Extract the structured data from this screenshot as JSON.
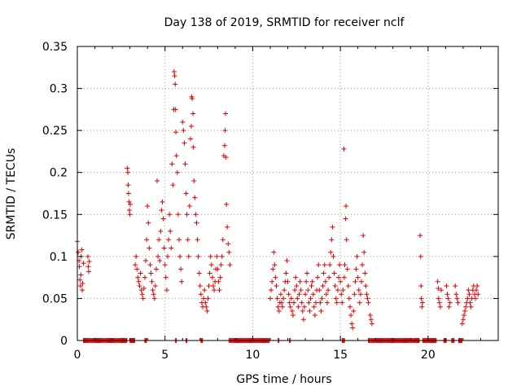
{
  "chart_data": {
    "type": "scatter",
    "title": "Day 138 of 2019, SRMTID for receiver nclf",
    "xlabel": "GPS time / hours",
    "ylabel": "SRMTID / TECUs",
    "xlim": [
      0,
      24
    ],
    "ylim": [
      0,
      0.35
    ],
    "x_ticks": [
      0,
      5,
      10,
      15,
      20
    ],
    "x_tick_labels": [
      "0",
      "5",
      "10",
      "15",
      "20"
    ],
    "y_ticks": [
      0,
      0.05,
      0.1,
      0.15,
      0.2,
      0.25,
      0.3,
      0.35
    ],
    "y_tick_labels": [
      "0",
      "0.05",
      "0.1",
      "0.15",
      "0.2",
      "0.25",
      "0.3",
      "0.35"
    ],
    "grid": true,
    "marker": "+",
    "color": "#e00000",
    "series": [
      {
        "name": "SRMTID",
        "points": [
          [
            0.0,
            0.118
          ],
          [
            0.05,
            0.105
          ],
          [
            0.1,
            0.095
          ],
          [
            0.12,
            0.088
          ],
          [
            0.15,
            0.072
          ],
          [
            0.18,
            0.065
          ],
          [
            0.2,
            0.078
          ],
          [
            0.22,
            0.1
          ],
          [
            0.25,
            0.108
          ],
          [
            0.28,
            0.06
          ],
          [
            0.3,
            0.068
          ],
          [
            0.35,
            0.092
          ],
          [
            0.6,
            0.1
          ],
          [
            0.62,
            0.088
          ],
          [
            0.65,
            0.082
          ],
          [
            0.68,
            0.094
          ],
          [
            2.85,
            0.205
          ],
          [
            2.88,
            0.2
          ],
          [
            2.9,
            0.185
          ],
          [
            2.92,
            0.175
          ],
          [
            2.95,
            0.165
          ],
          [
            2.97,
            0.155
          ],
          [
            3.0,
            0.15
          ],
          [
            3.02,
            0.162
          ],
          [
            3.3,
            0.09
          ],
          [
            3.35,
            0.1
          ],
          [
            3.4,
            0.085
          ],
          [
            3.45,
            0.075
          ],
          [
            3.5,
            0.07
          ],
          [
            3.55,
            0.065
          ],
          [
            3.6,
            0.08
          ],
          [
            3.65,
            0.06
          ],
          [
            3.7,
            0.055
          ],
          [
            3.75,
            0.05
          ],
          [
            3.8,
            0.062
          ],
          [
            3.85,
            0.075
          ],
          [
            3.9,
            0.095
          ],
          [
            3.95,
            0.12
          ],
          [
            4.0,
            0.16
          ],
          [
            4.05,
            0.14
          ],
          [
            4.1,
            0.11
          ],
          [
            4.15,
            0.09
          ],
          [
            4.2,
            0.08
          ],
          [
            4.25,
            0.07
          ],
          [
            4.3,
            0.06
          ],
          [
            4.35,
            0.055
          ],
          [
            4.4,
            0.05
          ],
          [
            4.45,
            0.065
          ],
          [
            4.5,
            0.085
          ],
          [
            4.55,
            0.19
          ],
          [
            4.6,
            0.1
          ],
          [
            4.65,
            0.12
          ],
          [
            4.7,
            0.095
          ],
          [
            4.75,
            0.13
          ],
          [
            4.8,
            0.155
          ],
          [
            4.85,
            0.165
          ],
          [
            4.9,
            0.145
          ],
          [
            4.95,
            0.11
          ],
          [
            5.0,
            0.09
          ],
          [
            5.05,
            0.075
          ],
          [
            5.1,
            0.06
          ],
          [
            5.15,
            0.1
          ],
          [
            5.2,
            0.12
          ],
          [
            5.25,
            0.15
          ],
          [
            5.3,
            0.13
          ],
          [
            5.35,
            0.11
          ],
          [
            5.4,
            0.21
          ],
          [
            5.45,
            0.185
          ],
          [
            5.5,
            0.275
          ],
          [
            5.52,
            0.32
          ],
          [
            5.55,
            0.315
          ],
          [
            5.58,
            0.305
          ],
          [
            5.6,
            0.275
          ],
          [
            5.62,
            0.248
          ],
          [
            5.65,
            0.22
          ],
          [
            5.7,
            0.2
          ],
          [
            5.75,
            0.15
          ],
          [
            5.8,
            0.12
          ],
          [
            5.85,
            0.1
          ],
          [
            5.9,
            0.085
          ],
          [
            5.95,
            0.07
          ],
          [
            6.0,
            0.26
          ],
          [
            6.05,
            0.25
          ],
          [
            6.1,
            0.235
          ],
          [
            6.15,
            0.21
          ],
          [
            6.2,
            0.175
          ],
          [
            6.25,
            0.15
          ],
          [
            6.3,
            0.12
          ],
          [
            6.35,
            0.1
          ],
          [
            6.4,
            0.16
          ],
          [
            6.45,
            0.24
          ],
          [
            6.5,
            0.255
          ],
          [
            6.52,
            0.29
          ],
          [
            6.55,
            0.288
          ],
          [
            6.6,
            0.27
          ],
          [
            6.62,
            0.23
          ],
          [
            6.65,
            0.19
          ],
          [
            6.7,
            0.17
          ],
          [
            6.75,
            0.15
          ],
          [
            6.8,
            0.14
          ],
          [
            6.85,
            0.12
          ],
          [
            6.9,
            0.1
          ],
          [
            6.95,
            0.08
          ],
          [
            7.0,
            0.065
          ],
          [
            7.05,
            0.055
          ],
          [
            7.1,
            0.045
          ],
          [
            7.15,
            0.04
          ],
          [
            7.2,
            0.05
          ],
          [
            7.25,
            0.06
          ],
          [
            7.3,
            0.045
          ],
          [
            7.35,
            0.04
          ],
          [
            7.4,
            0.035
          ],
          [
            7.45,
            0.05
          ],
          [
            7.5,
            0.065
          ],
          [
            7.55,
            0.08
          ],
          [
            7.6,
            0.1
          ],
          [
            7.65,
            0.09
          ],
          [
            7.7,
            0.075
          ],
          [
            7.75,
            0.065
          ],
          [
            7.8,
            0.06
          ],
          [
            7.85,
            0.07
          ],
          [
            7.9,
            0.085
          ],
          [
            7.95,
            0.1
          ],
          [
            8.0,
            0.085
          ],
          [
            8.05,
            0.07
          ],
          [
            8.1,
            0.06
          ],
          [
            8.15,
            0.075
          ],
          [
            8.2,
            0.09
          ],
          [
            8.25,
            0.1
          ],
          [
            8.3,
            0.12
          ],
          [
            8.35,
            0.22
          ],
          [
            8.4,
            0.232
          ],
          [
            8.42,
            0.25
          ],
          [
            8.45,
            0.27
          ],
          [
            8.48,
            0.218
          ],
          [
            8.5,
            0.162
          ],
          [
            8.55,
            0.135
          ],
          [
            8.6,
            0.115
          ],
          [
            8.65,
            0.105
          ],
          [
            8.7,
            0.09
          ],
          [
            11.0,
            0.05
          ],
          [
            11.05,
            0.06
          ],
          [
            11.1,
            0.07
          ],
          [
            11.15,
            0.085
          ],
          [
            11.2,
            0.105
          ],
          [
            11.25,
            0.09
          ],
          [
            11.3,
            0.075
          ],
          [
            11.35,
            0.065
          ],
          [
            11.4,
            0.05
          ],
          [
            11.45,
            0.04
          ],
          [
            11.5,
            0.035
          ],
          [
            11.55,
            0.045
          ],
          [
            11.6,
            0.055
          ],
          [
            11.65,
            0.045
          ],
          [
            11.7,
            0.04
          ],
          [
            11.75,
            0.05
          ],
          [
            11.8,
            0.06
          ],
          [
            11.85,
            0.07
          ],
          [
            11.9,
            0.08
          ],
          [
            11.95,
            0.095
          ],
          [
            12.0,
            0.07
          ],
          [
            12.05,
            0.055
          ],
          [
            12.1,
            0.045
          ],
          [
            12.15,
            0.04
          ],
          [
            12.2,
            0.05
          ],
          [
            12.25,
            0.035
          ],
          [
            12.3,
            0.03
          ],
          [
            12.35,
            0.045
          ],
          [
            12.4,
            0.06
          ],
          [
            12.45,
            0.075
          ],
          [
            12.5,
            0.065
          ],
          [
            12.55,
            0.05
          ],
          [
            12.6,
            0.04
          ],
          [
            12.65,
            0.055
          ],
          [
            12.7,
            0.07
          ],
          [
            12.75,
            0.06
          ],
          [
            12.8,
            0.045
          ],
          [
            12.85,
            0.035
          ],
          [
            12.9,
            0.025
          ],
          [
            12.95,
            0.04
          ],
          [
            13.0,
            0.055
          ],
          [
            13.05,
            0.07
          ],
          [
            13.1,
            0.08
          ],
          [
            13.15,
            0.06
          ],
          [
            13.2,
            0.045
          ],
          [
            13.25,
            0.035
          ],
          [
            13.3,
            0.05
          ],
          [
            13.35,
            0.065
          ],
          [
            13.4,
            0.07
          ],
          [
            13.45,
            0.055
          ],
          [
            13.5,
            0.04
          ],
          [
            13.55,
            0.03
          ],
          [
            13.6,
            0.045
          ],
          [
            13.65,
            0.06
          ],
          [
            13.7,
            0.075
          ],
          [
            13.75,
            0.09
          ],
          [
            13.8,
            0.06
          ],
          [
            13.85,
            0.045
          ],
          [
            13.9,
            0.035
          ],
          [
            13.95,
            0.05
          ],
          [
            14.0,
            0.065
          ],
          [
            14.05,
            0.08
          ],
          [
            14.1,
            0.09
          ],
          [
            14.15,
            0.07
          ],
          [
            14.2,
            0.055
          ],
          [
            14.25,
            0.045
          ],
          [
            14.3,
            0.06
          ],
          [
            14.35,
            0.075
          ],
          [
            14.4,
            0.09
          ],
          [
            14.45,
            0.105
          ],
          [
            14.5,
            0.12
          ],
          [
            14.55,
            0.135
          ],
          [
            14.6,
            0.1
          ],
          [
            14.65,
            0.08
          ],
          [
            14.7,
            0.065
          ],
          [
            14.75,
            0.05
          ],
          [
            14.8,
            0.045
          ],
          [
            14.85,
            0.06
          ],
          [
            14.9,
            0.075
          ],
          [
            14.95,
            0.09
          ],
          [
            15.0,
            0.07
          ],
          [
            15.05,
            0.055
          ],
          [
            15.1,
            0.045
          ],
          [
            15.15,
            0.06
          ],
          [
            15.2,
            0.228
          ],
          [
            15.22,
            0.075
          ],
          [
            15.25,
            0.09
          ],
          [
            15.3,
            0.145
          ],
          [
            15.32,
            0.16
          ],
          [
            15.35,
            0.12
          ],
          [
            15.4,
            0.085
          ],
          [
            15.45,
            0.065
          ],
          [
            15.5,
            0.05
          ],
          [
            15.55,
            0.04
          ],
          [
            15.6,
            0.03
          ],
          [
            15.65,
            0.02
          ],
          [
            15.7,
            0.015
          ],
          [
            15.75,
            0.035
          ],
          [
            15.8,
            0.055
          ],
          [
            15.85,
            0.07
          ],
          [
            15.9,
            0.085
          ],
          [
            15.95,
            0.1
          ],
          [
            16.0,
            0.075
          ],
          [
            16.05,
            0.06
          ],
          [
            16.1,
            0.045
          ],
          [
            16.15,
            0.055
          ],
          [
            16.2,
            0.07
          ],
          [
            16.25,
            0.09
          ],
          [
            16.3,
            0.125
          ],
          [
            16.35,
            0.105
          ],
          [
            16.4,
            0.08
          ],
          [
            16.45,
            0.065
          ],
          [
            16.5,
            0.055
          ],
          [
            16.55,
            0.05
          ],
          [
            16.6,
            0.045
          ],
          [
            16.7,
            0.03
          ],
          [
            16.75,
            0.025
          ],
          [
            16.8,
            0.02
          ],
          [
            19.55,
            0.125
          ],
          [
            19.58,
            0.1
          ],
          [
            19.6,
            0.065
          ],
          [
            19.62,
            0.05
          ],
          [
            19.65,
            0.04
          ],
          [
            19.68,
            0.045
          ],
          [
            20.55,
            0.07
          ],
          [
            20.58,
            0.062
          ],
          [
            20.6,
            0.05
          ],
          [
            20.65,
            0.045
          ],
          [
            20.7,
            0.04
          ],
          [
            20.75,
            0.06
          ],
          [
            21.05,
            0.065
          ],
          [
            21.1,
            0.055
          ],
          [
            21.15,
            0.05
          ],
          [
            21.2,
            0.04
          ],
          [
            21.25,
            0.045
          ],
          [
            21.55,
            0.065
          ],
          [
            21.6,
            0.055
          ],
          [
            21.65,
            0.05
          ],
          [
            21.7,
            0.045
          ],
          [
            21.95,
            0.02
          ],
          [
            22.0,
            0.025
          ],
          [
            22.05,
            0.03
          ],
          [
            22.1,
            0.035
          ],
          [
            22.15,
            0.04
          ],
          [
            22.2,
            0.045
          ],
          [
            22.25,
            0.05
          ],
          [
            22.3,
            0.06
          ],
          [
            22.35,
            0.055
          ],
          [
            22.4,
            0.045
          ],
          [
            22.45,
            0.04
          ],
          [
            22.5,
            0.05
          ],
          [
            22.55,
            0.06
          ],
          [
            22.6,
            0.065
          ],
          [
            22.65,
            0.055
          ],
          [
            22.7,
            0.05
          ],
          [
            22.75,
            0.06
          ],
          [
            22.8,
            0.065
          ],
          [
            22.85,
            0.055
          ]
        ]
      }
    ],
    "zero_intervals": [
      [
        0.35,
        2.85
      ],
      [
        3.0,
        3.3
      ],
      [
        3.85,
        3.95
      ],
      [
        5.6,
        5.65
      ],
      [
        6.2,
        6.25
      ],
      [
        7.05,
        7.15
      ],
      [
        8.65,
        10.95
      ],
      [
        11.45,
        11.5
      ],
      [
        12.1,
        12.15
      ],
      [
        15.1,
        15.25
      ],
      [
        16.6,
        16.7
      ],
      [
        16.75,
        19.5
      ],
      [
        19.7,
        20.5
      ],
      [
        20.9,
        21.05
      ],
      [
        21.35,
        21.5
      ],
      [
        21.75,
        21.95
      ]
    ]
  }
}
